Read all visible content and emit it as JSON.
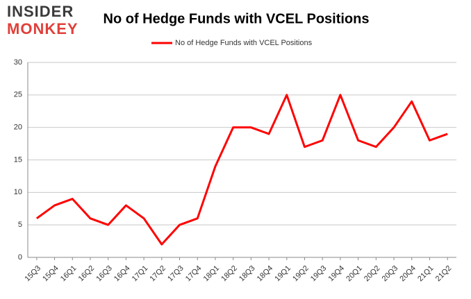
{
  "logo": {
    "top": "INSIDER",
    "bottom": "MONKEY"
  },
  "chart_data": {
    "type": "line",
    "title": "No of Hedge Funds with VCEL Positions",
    "categories": [
      "15Q3",
      "15Q4",
      "16Q1",
      "16Q2",
      "16Q3",
      "16Q4",
      "17Q1",
      "17Q2",
      "17Q3",
      "17Q4",
      "18Q1",
      "18Q2",
      "18Q3",
      "18Q4",
      "19Q1",
      "19Q2",
      "19Q3",
      "19Q4",
      "20Q1",
      "20Q2",
      "20Q3",
      "20Q4",
      "21Q1",
      "21Q2"
    ],
    "series": [
      {
        "name": "No of Hedge Funds with VCEL Positions",
        "color": "#ff0000",
        "values": [
          6,
          8,
          9,
          6,
          5,
          8,
          6,
          2,
          5,
          6,
          14,
          20,
          20,
          19,
          25,
          17,
          18,
          25,
          18,
          17,
          20,
          24,
          18,
          19
        ]
      }
    ],
    "ylim": [
      0,
      30
    ],
    "yticks": [
      0,
      5,
      10,
      15,
      20,
      25,
      30
    ],
    "grid": true,
    "legend": "top"
  }
}
